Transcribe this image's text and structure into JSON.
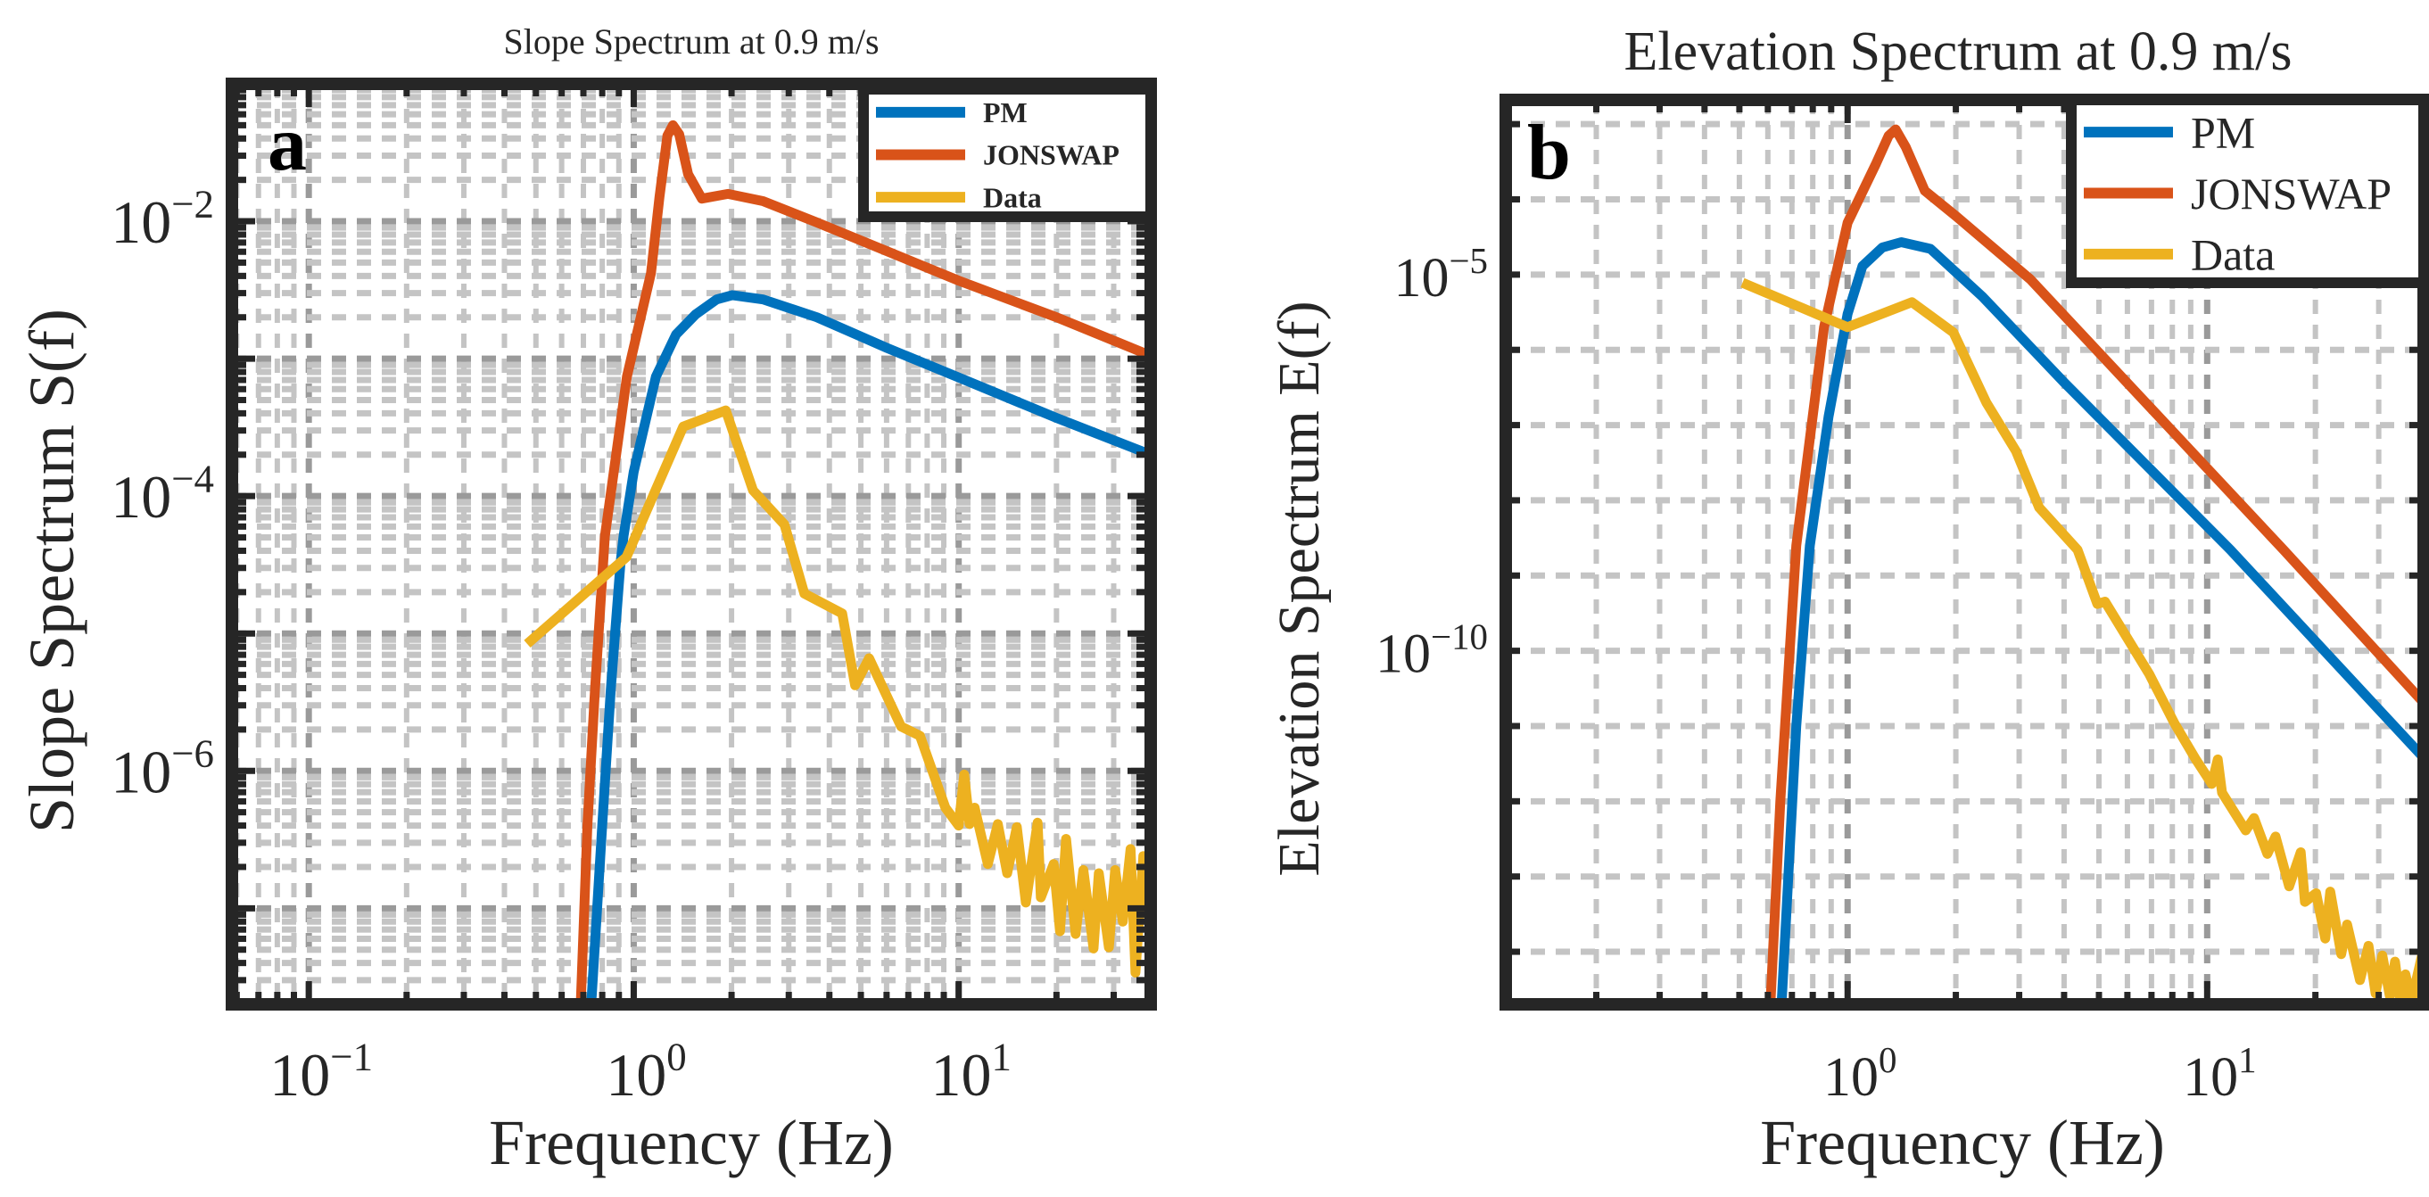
{
  "chart_data": [
    {
      "type": "line",
      "panel_label": "a",
      "title": "Slope Spectrum at 0.9 m/s",
      "xlabel": "Frequency (Hz)",
      "ylabel": "Slope Spectrum S(f)",
      "xscale": "log",
      "yscale": "log",
      "xlim": [
        0.058,
        39
      ],
      "ylim": [
        2e-08,
        0.1
      ],
      "xticks": [
        0.1,
        1,
        10
      ],
      "xtick_labels": [
        "10^−1",
        "10^0",
        "10^1"
      ],
      "yticks": [
        1e-06,
        0.0001,
        0.01
      ],
      "ytick_labels": [
        "10^−6",
        "10^−4",
        "10^−2"
      ],
      "grid": "major+minor (dotted)",
      "legend": {
        "location": "top-right",
        "bold": true
      },
      "series": [
        {
          "name": "PM",
          "color": "#0072BD",
          "points": [
            [
              0.74,
              2e-08
            ],
            [
              0.8,
              4e-07
            ],
            [
              0.85,
              3.9e-06
            ],
            [
              0.91,
              3.2e-05
            ],
            [
              0.93,
              5.1e-05
            ],
            [
              1.0,
              0.00015
            ],
            [
              1.17,
              0.00074
            ],
            [
              1.35,
              0.0015
            ],
            [
              1.55,
              0.0021
            ],
            [
              1.8,
              0.0027
            ],
            [
              2.01,
              0.0029
            ],
            [
              2.5,
              0.0027
            ],
            [
              3.66,
              0.002
            ],
            [
              6,
              0.0012
            ],
            [
              10,
              0.00073
            ],
            [
              20,
              0.00037
            ],
            [
              39,
              0.0002
            ]
          ]
        },
        {
          "name": "JONSWAP",
          "color": "#D95319",
          "points": [
            [
              0.687,
              2e-08
            ],
            [
              0.72,
              4e-07
            ],
            [
              0.76,
              3.9e-06
            ],
            [
              0.815,
              5.1e-05
            ],
            [
              0.953,
              0.00074
            ],
            [
              1.13,
              0.0042
            ],
            [
              1.2,
              0.015
            ],
            [
              1.27,
              0.042
            ],
            [
              1.32,
              0.05
            ],
            [
              1.38,
              0.043
            ],
            [
              1.47,
              0.022
            ],
            [
              1.62,
              0.0146
            ],
            [
              1.95,
              0.0158
            ],
            [
              2.5,
              0.014
            ],
            [
              3.66,
              0.0098
            ],
            [
              10,
              0.0037
            ],
            [
              20,
              0.002
            ],
            [
              39,
              0.00105
            ]
          ]
        },
        {
          "name": "Data",
          "color": "#EDB120",
          "points": [
            [
              0.47,
              8.4e-06
            ],
            [
              0.95,
              3.6e-05
            ],
            [
              1.42,
              0.00032
            ],
            [
              1.92,
              0.00042
            ],
            [
              2.33,
              0.00011
            ],
            [
              2.91,
              6.2e-05
            ],
            [
              3.35,
              1.95e-05
            ],
            [
              4.38,
              1.4e-05
            ],
            [
              4.8,
              4.2e-06
            ],
            [
              5.3,
              6.6e-06
            ],
            [
              6.65,
              2.1e-06
            ],
            [
              7.6,
              1.8e-06
            ],
            [
              8.3,
              1e-06
            ],
            [
              9.1,
              5.4e-07
            ],
            [
              10.0,
              4e-07
            ],
            [
              10.4,
              9.4e-07
            ],
            [
              10.8,
              4.1e-07
            ],
            [
              11.2,
              5.4e-07
            ],
            [
              12.3,
              2.1e-07
            ],
            [
              13.2,
              4.1e-07
            ],
            [
              14.1,
              1.8e-07
            ],
            [
              15.1,
              3.9e-07
            ],
            [
              16.1,
              1.1e-07
            ],
            [
              17.5,
              4.2e-07
            ],
            [
              17.9,
              1.2e-07
            ],
            [
              19.6,
              2.1e-07
            ],
            [
              20.5,
              6.8e-08
            ],
            [
              21.4,
              3.2e-07
            ],
            [
              22.9,
              6.5e-08
            ],
            [
              24.2,
              1.9e-07
            ],
            [
              26,
              5.1e-08
            ],
            [
              27,
              1.8e-07
            ],
            [
              29,
              5.2e-08
            ],
            [
              30.3,
              1.9e-07
            ],
            [
              32,
              8e-08
            ],
            [
              33.8,
              2.7e-07
            ],
            [
              35,
              3.4e-08
            ],
            [
              37,
              2.4e-07
            ],
            [
              38,
              1.1e-07
            ]
          ]
        }
      ]
    },
    {
      "type": "line",
      "panel_label": "b",
      "title": "Elevation Spectrum at 0.9 m/s",
      "xlabel": "Frequency (Hz)",
      "ylabel": "Elevation Spectrum E(f)",
      "xscale": "log",
      "yscale": "log",
      "xlim": [
        0.112,
        40
      ],
      "ylim": [
        2e-15,
        0.0021
      ],
      "xticks": [
        1,
        10
      ],
      "xtick_labels": [
        "10^0",
        "10^1"
      ],
      "yticks": [
        1e-10,
        1e-05
      ],
      "ytick_labels": [
        "10^−10",
        "10^−5"
      ],
      "grid": "x major+minor, y per decade (dotted)",
      "legend": {
        "location": "top-right",
        "bold": false
      },
      "series": [
        {
          "name": "PM",
          "color": "#0072BD",
          "points": [
            [
              0.655,
              2e-15
            ],
            [
              0.72,
              1e-11
            ],
            [
              0.785,
              2.5e-09
            ],
            [
              0.885,
              1.3e-07
            ],
            [
              1.0,
              3e-06
            ],
            [
              1.1,
              1.3e-05
            ],
            [
              1.25,
              2.3e-05
            ],
            [
              1.41,
              2.7e-05
            ],
            [
              1.7,
              2.2e-05
            ],
            [
              2.37,
              5.1e-06
            ],
            [
              4,
              3.7e-07
            ],
            [
              11.6,
              2.2e-09
            ],
            [
              39.8,
              3.9e-12
            ]
          ]
        },
        {
          "name": "JONSWAP",
          "color": "#D95319",
          "points": [
            [
              0.61,
              2e-15
            ],
            [
              0.65,
              1e-12
            ],
            [
              0.72,
              2.5e-09
            ],
            [
              0.86,
              2e-06
            ],
            [
              1.0,
              4.9e-05
            ],
            [
              1.2,
              0.0003
            ],
            [
              1.3,
              0.0007
            ],
            [
              1.36,
              0.00085
            ],
            [
              1.45,
              0.0005
            ],
            [
              1.64,
              0.00013
            ],
            [
              2.0,
              6e-05
            ],
            [
              3.22,
              8.7e-06
            ],
            [
              16.3,
              2.2e-09
            ],
            [
              39.8,
              2.1e-11
            ]
          ]
        },
        {
          "name": "Data",
          "color": "#EDB120",
          "points": [
            [
              0.51,
              7.8e-06
            ],
            [
              1.0,
              2e-06
            ],
            [
              1.51,
              4.3e-06
            ],
            [
              1.97,
              1.7e-06
            ],
            [
              2.43,
              2e-07
            ],
            [
              2.94,
              4.5e-08
            ],
            [
              3.41,
              8e-09
            ],
            [
              4.36,
              2.2e-09
            ],
            [
              4.95,
              4.2e-10
            ],
            [
              5.2,
              4.5e-10
            ],
            [
              6.9,
              4.9e-11
            ],
            [
              8.1,
              1.1e-11
            ],
            [
              9.3,
              3.6e-12
            ],
            [
              10.3,
              1.7e-12
            ],
            [
              10.7,
              3.6e-12
            ],
            [
              11.0,
              1.3e-12
            ],
            [
              12.8,
              4.1e-13
            ],
            [
              13.5,
              6e-13
            ],
            [
              14.7,
              2e-13
            ],
            [
              15.5,
              3.4e-13
            ],
            [
              16.9,
              7.4e-14
            ],
            [
              18.2,
              2.1e-13
            ],
            [
              18.7,
              4.6e-14
            ],
            [
              20.1,
              6e-14
            ],
            [
              21.3,
              1.5e-14
            ],
            [
              22,
              6.3e-14
            ],
            [
              23.6,
              9.3e-15
            ],
            [
              24.5,
              2.3e-14
            ],
            [
              26.6,
              4.2e-15
            ],
            [
              28.1,
              1.2e-14
            ],
            [
              29.4,
              2.8e-15
            ],
            [
              30.7,
              8.9e-15
            ],
            [
              32.2,
              2.6e-15
            ],
            [
              33.3,
              7.4e-15
            ],
            [
              34.4,
              2.2e-15
            ],
            [
              35.6,
              5e-15
            ],
            [
              37,
              2.2e-15
            ],
            [
              39.8,
              1e-14
            ]
          ]
        }
      ]
    }
  ]
}
